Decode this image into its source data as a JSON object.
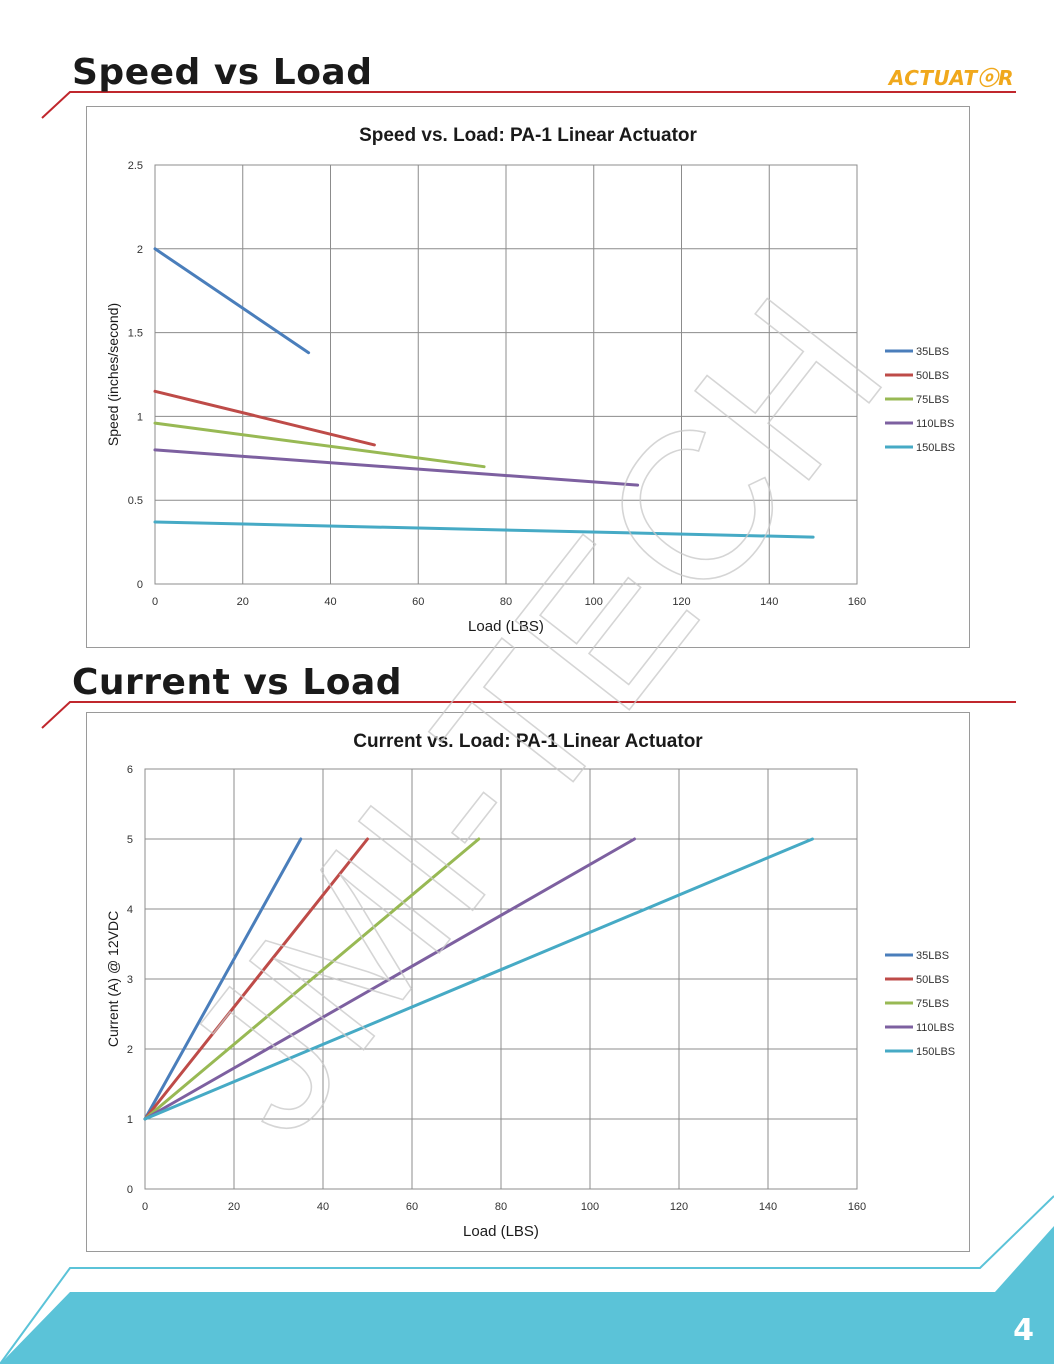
{
  "header": {
    "brand_logo": "ACTUATⓞR"
  },
  "sections": [
    {
      "heading": "Speed vs Load"
    },
    {
      "heading": "Current vs Load"
    }
  ],
  "footer": {
    "page_number": "4"
  },
  "watermark": "JMI-TECH",
  "colors": {
    "accent_red": "#c0272d",
    "footer_cyan": "#5bc3d8",
    "logo_orange": "#f0a81c",
    "series": [
      "#4a7ebb",
      "#be4b48",
      "#98b954",
      "#7d60a0",
      "#46aac5"
    ]
  },
  "chart_data": [
    {
      "type": "line",
      "title": "Speed vs. Load: PA-1    Linear Actuator",
      "xlabel": "Load (LBS)",
      "ylabel": "Speed (inches/second)",
      "xlim": [
        0,
        160
      ],
      "ylim": [
        0,
        2.5
      ],
      "xticks": [
        "0",
        "20",
        "40",
        "60",
        "80",
        "100",
        "120",
        "140",
        "160"
      ],
      "yticks": [
        "0",
        "0.5",
        "1",
        "1.5",
        "2",
        "2.5"
      ],
      "grid": true,
      "legend_position": "right",
      "series": [
        {
          "name": "35LBS",
          "color": "#4a7ebb",
          "points": [
            [
              0,
              2.0
            ],
            [
              35,
              1.38
            ]
          ]
        },
        {
          "name": "50LBS",
          "color": "#be4b48",
          "points": [
            [
              0,
              1.15
            ],
            [
              50,
              0.83
            ]
          ]
        },
        {
          "name": "75LBS",
          "color": "#98b954",
          "points": [
            [
              0,
              0.96
            ],
            [
              75,
              0.7
            ]
          ]
        },
        {
          "name": "110LBS",
          "color": "#7d60a0",
          "points": [
            [
              0,
              0.8
            ],
            [
              110,
              0.59
            ]
          ]
        },
        {
          "name": "150LBS",
          "color": "#46aac5",
          "points": [
            [
              0,
              0.37
            ],
            [
              150,
              0.28
            ]
          ]
        }
      ]
    },
    {
      "type": "line",
      "title": "Current vs. Load: PA-1    Linear Actuator",
      "xlabel": "Load (LBS)",
      "ylabel": "Current (A) @ 12VDC",
      "xlim": [
        0,
        160
      ],
      "ylim": [
        0,
        6
      ],
      "xticks": [
        "0",
        "20",
        "40",
        "60",
        "80",
        "100",
        "120",
        "140",
        "160"
      ],
      "yticks": [
        "0",
        "1",
        "2",
        "3",
        "4",
        "5",
        "6"
      ],
      "grid": true,
      "legend_position": "right",
      "series": [
        {
          "name": "35LBS",
          "color": "#4a7ebb",
          "points": [
            [
              0,
              1.0
            ],
            [
              35,
              5.0
            ]
          ]
        },
        {
          "name": "50LBS",
          "color": "#be4b48",
          "points": [
            [
              0,
              1.0
            ],
            [
              50,
              5.0
            ]
          ]
        },
        {
          "name": "75LBS",
          "color": "#98b954",
          "points": [
            [
              0,
              1.0
            ],
            [
              75,
              5.0
            ]
          ]
        },
        {
          "name": "110LBS",
          "color": "#7d60a0",
          "points": [
            [
              0,
              1.0
            ],
            [
              110,
              5.0
            ]
          ]
        },
        {
          "name": "150LBS",
          "color": "#46aac5",
          "points": [
            [
              0,
              1.0
            ],
            [
              150,
              5.0
            ]
          ]
        }
      ]
    }
  ]
}
